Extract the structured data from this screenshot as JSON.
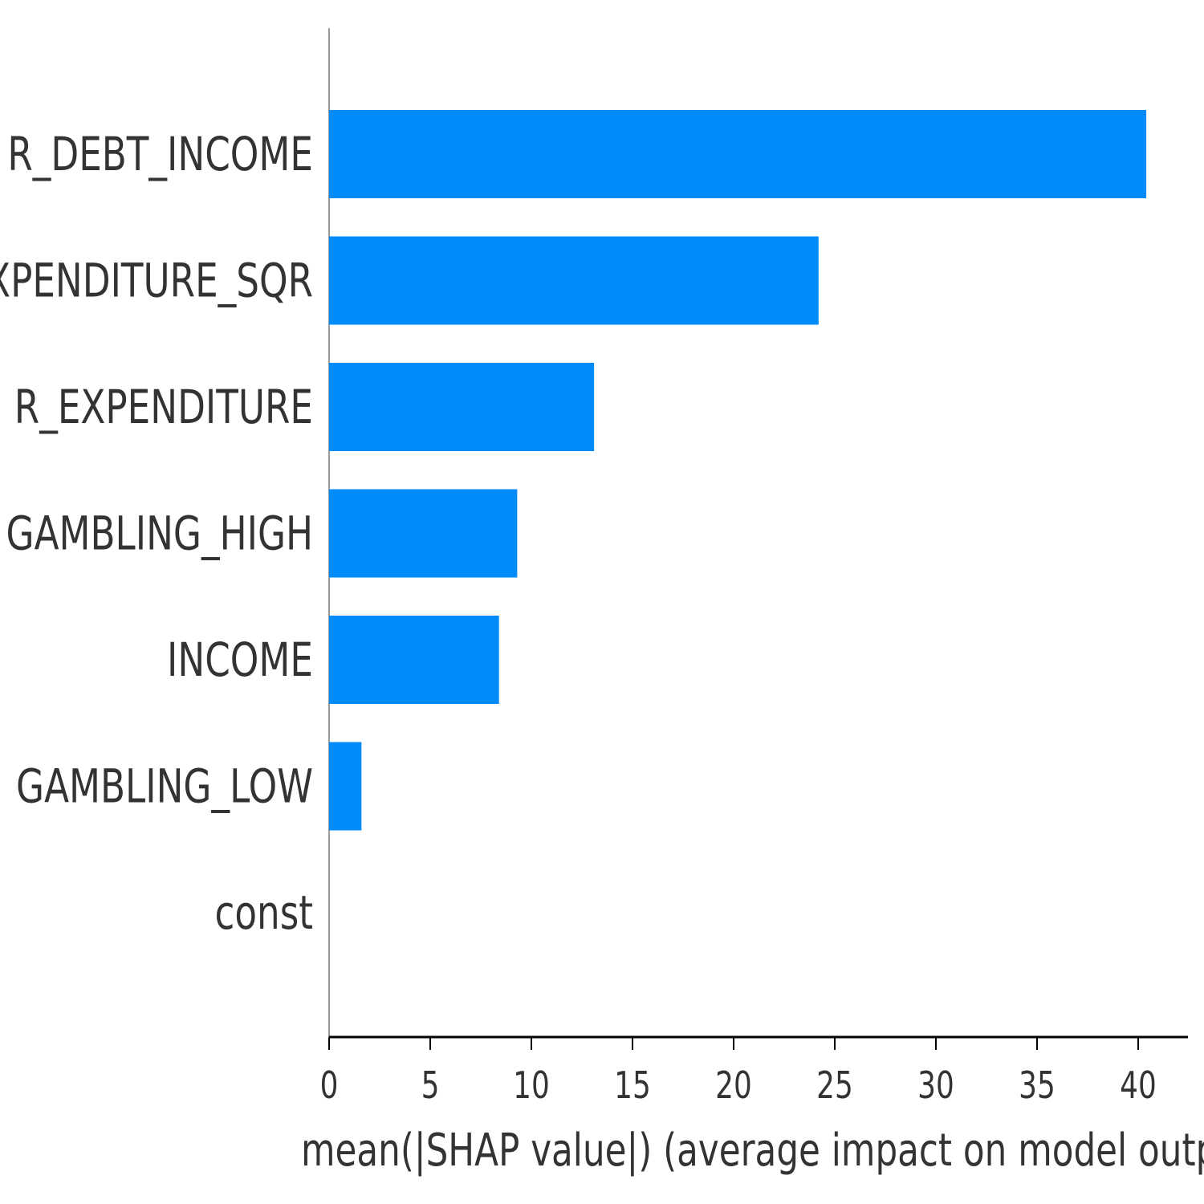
{
  "chart_data": {
    "type": "bar",
    "orientation": "horizontal",
    "categories": [
      "R_DEBT_INCOME",
      "R_EXPENDITURE_SQR",
      "R_EXPENDITURE",
      "GAMBLING_HIGH",
      "INCOME",
      "GAMBLING_LOW",
      "const"
    ],
    "values": [
      40.4,
      24.2,
      13.1,
      9.3,
      8.4,
      1.6,
      0
    ],
    "xlabel": "mean(|SHAP value|) (average impact on model output magnitude",
    "ylabel": "",
    "xlim": [
      0,
      42.5
    ],
    "xticks": [
      0,
      5,
      10,
      15,
      20,
      25,
      30,
      35,
      40
    ],
    "xtick_labels": [
      "0",
      "5",
      "10",
      "15",
      "20",
      "25",
      "30",
      "35",
      "40"
    ],
    "bar_color": "#008bfb",
    "grid": false,
    "legend": "none"
  }
}
